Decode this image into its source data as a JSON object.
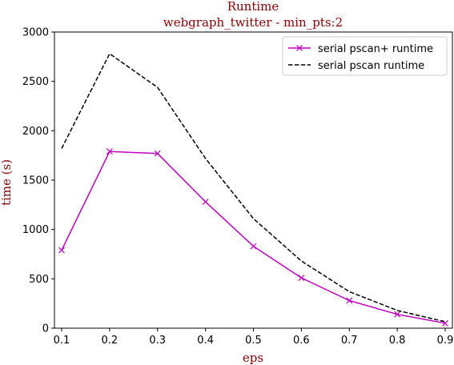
{
  "chart_data": {
    "type": "line",
    "title": "Runtime",
    "subtitle": "webgraph_twitter - min_pts:2",
    "xlabel": "eps",
    "ylabel": "time (s)",
    "x": [
      0.1,
      0.2,
      0.3,
      0.4,
      0.5,
      0.6,
      0.7,
      0.8,
      0.9
    ],
    "xlim": [
      0.085,
      0.915
    ],
    "ylim": [
      0,
      3000
    ],
    "xticks": [
      "0.1",
      "0.2",
      "0.3",
      "0.4",
      "0.5",
      "0.6",
      "0.7",
      "0.8",
      "0.9"
    ],
    "yticks": [
      "0",
      "500",
      "1000",
      "1500",
      "2000",
      "2500",
      "3000"
    ],
    "legend_position": "top-right",
    "grid": false,
    "series": [
      {
        "name": "serial pscan+ runtime",
        "values": [
          790,
          1790,
          1770,
          1280,
          830,
          510,
          280,
          140,
          50
        ],
        "color": "#bf00bf",
        "style": "solid",
        "marker": "x"
      },
      {
        "name": "serial pscan runtime",
        "values": [
          1820,
          2780,
          2440,
          1720,
          1110,
          680,
          370,
          180,
          65
        ],
        "color": "#000000",
        "style": "dashed",
        "marker": "none"
      }
    ]
  }
}
